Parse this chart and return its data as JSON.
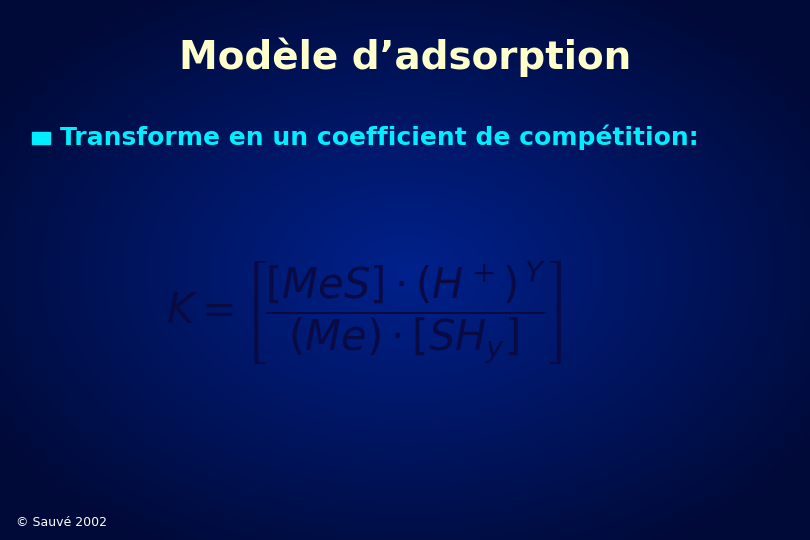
{
  "title": "Modèle d’adsorption",
  "title_color": "#FFFFCC",
  "title_fontsize": 28,
  "bullet_text": "Transforme en un coefficient de compétition:",
  "bullet_color": "#00EEFF",
  "bullet_fontsize": 18,
  "bullet_square_color": "#00EEFF",
  "formula_color": "#0A0A44",
  "copyright_text": "© Sauvé 2002",
  "copyright_color": "#FFFFFF",
  "copyright_fontsize": 9,
  "fig_width": 8.1,
  "fig_height": 5.4
}
